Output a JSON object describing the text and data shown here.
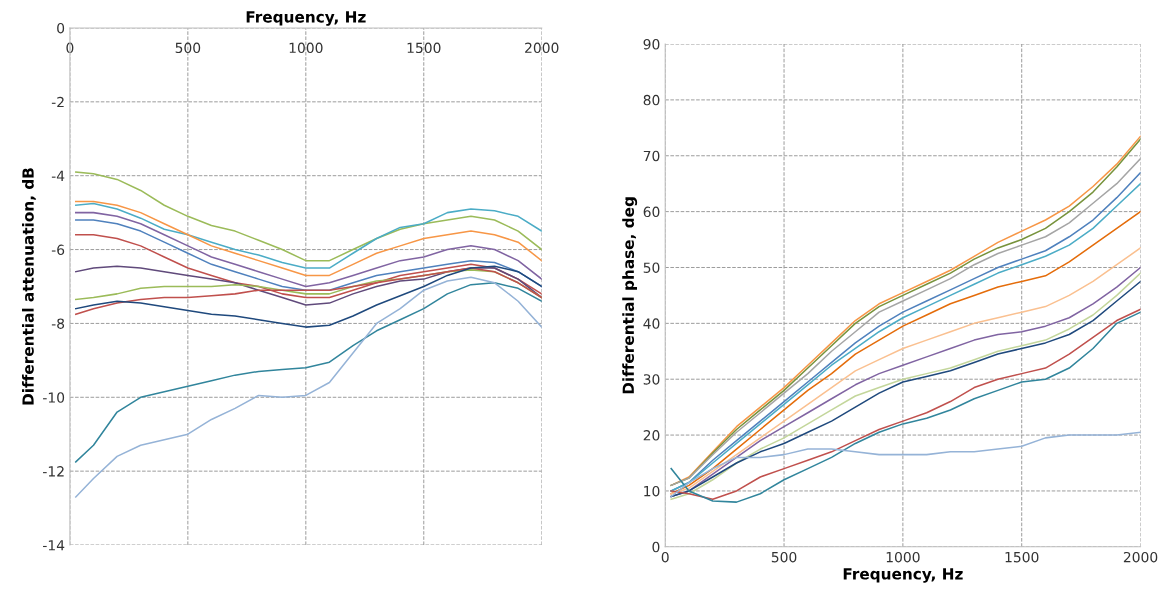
{
  "chart_data": [
    {
      "type": "line",
      "xlabel": "Frequency, Hz",
      "ylabel": "Differential attenuation, dB",
      "xlim": [
        0,
        2000
      ],
      "xticks": [
        0,
        500,
        1000,
        1500,
        2000
      ],
      "ylim": [
        -14,
        0
      ],
      "yticks": [
        -14,
        -12,
        -10,
        -8,
        -6,
        -4,
        -2,
        0
      ],
      "grid": true,
      "line_style": "solid",
      "x": [
        25,
        100,
        200,
        300,
        400,
        500,
        600,
        700,
        800,
        900,
        1000,
        1100,
        1200,
        1300,
        1400,
        1500,
        1600,
        1700,
        1800,
        1900,
        2000
      ],
      "series": [
        {
          "color": "#9bbb59",
          "values": [
            -3.9,
            -3.95,
            -4.1,
            -4.4,
            -4.8,
            -5.1,
            -5.35,
            -5.5,
            -5.75,
            -6.0,
            -6.3,
            -6.3,
            -6.0,
            -5.7,
            -5.45,
            -5.3,
            -5.2,
            -5.1,
            -5.2,
            -5.5,
            -6.0
          ]
        },
        {
          "color": "#4bacc6",
          "values": [
            -4.8,
            -4.75,
            -4.9,
            -5.15,
            -5.45,
            -5.6,
            -5.8,
            -6.0,
            -6.15,
            -6.35,
            -6.5,
            -6.5,
            -6.1,
            -5.7,
            -5.4,
            -5.3,
            -5.0,
            -4.9,
            -4.95,
            -5.1,
            -5.5
          ]
        },
        {
          "color": "#f79646",
          "values": [
            -4.7,
            -4.7,
            -4.8,
            -5.0,
            -5.3,
            -5.6,
            -5.9,
            -6.1,
            -6.3,
            -6.5,
            -6.7,
            -6.7,
            -6.4,
            -6.1,
            -5.9,
            -5.7,
            -5.6,
            -5.5,
            -5.6,
            -5.8,
            -6.3
          ]
        },
        {
          "color": "#8064a2",
          "values": [
            -5.0,
            -5.0,
            -5.1,
            -5.3,
            -5.6,
            -5.9,
            -6.2,
            -6.4,
            -6.6,
            -6.8,
            -7.0,
            -6.9,
            -6.7,
            -6.5,
            -6.3,
            -6.2,
            -6.0,
            -5.9,
            -6.0,
            -6.3,
            -6.8
          ]
        },
        {
          "color": "#4f81bd",
          "values": [
            -5.2,
            -5.2,
            -5.3,
            -5.5,
            -5.8,
            -6.1,
            -6.4,
            -6.6,
            -6.8,
            -7.0,
            -7.1,
            -7.1,
            -6.9,
            -6.7,
            -6.6,
            -6.5,
            -6.4,
            -6.3,
            -6.35,
            -6.6,
            -7.0
          ]
        },
        {
          "color": "#c0504d",
          "values": [
            -5.6,
            -5.6,
            -5.7,
            -5.9,
            -6.2,
            -6.5,
            -6.7,
            -6.9,
            -7.0,
            -7.2,
            -7.3,
            -7.3,
            -7.1,
            -6.9,
            -6.7,
            -6.6,
            -6.5,
            -6.4,
            -6.5,
            -6.8,
            -7.2
          ]
        },
        {
          "color": "#604a7b",
          "values": [
            -6.6,
            -6.5,
            -6.45,
            -6.5,
            -6.6,
            -6.7,
            -6.8,
            -6.9,
            -7.1,
            -7.3,
            -7.5,
            -7.45,
            -7.2,
            -7.0,
            -6.85,
            -6.8,
            -6.6,
            -6.5,
            -6.5,
            -6.8,
            -7.3
          ]
        },
        {
          "color": "#9bbb59",
          "values": [
            -7.35,
            -7.3,
            -7.2,
            -7.05,
            -7.0,
            -7.0,
            -7.0,
            -6.95,
            -7.0,
            -7.1,
            -7.2,
            -7.2,
            -7.0,
            -6.85,
            -6.8,
            -6.7,
            -6.6,
            -6.55,
            -6.6,
            -6.9,
            -7.3
          ]
        },
        {
          "color": "#c0504d",
          "values": [
            -7.75,
            -7.6,
            -7.45,
            -7.35,
            -7.3,
            -7.3,
            -7.25,
            -7.2,
            -7.1,
            -7.1,
            -7.1,
            -7.1,
            -7.0,
            -6.9,
            -6.8,
            -6.7,
            -6.6,
            -6.5,
            -6.6,
            -6.9,
            -7.3
          ]
        },
        {
          "color": "#1f497d",
          "values": [
            -7.6,
            -7.5,
            -7.4,
            -7.45,
            -7.55,
            -7.65,
            -7.75,
            -7.8,
            -7.9,
            -8.0,
            -8.1,
            -8.05,
            -7.8,
            -7.5,
            -7.25,
            -7.0,
            -6.7,
            -6.5,
            -6.45,
            -6.6,
            -7.0
          ]
        },
        {
          "color": "#31859c",
          "values": [
            -11.75,
            -11.3,
            -10.4,
            -10.0,
            -9.85,
            -9.7,
            -9.55,
            -9.4,
            -9.3,
            -9.25,
            -9.2,
            -9.05,
            -8.6,
            -8.2,
            -7.9,
            -7.6,
            -7.2,
            -6.95,
            -6.9,
            -7.05,
            -7.4
          ]
        },
        {
          "color": "#95b3d7",
          "values": [
            -12.7,
            -12.2,
            -11.6,
            -11.3,
            -11.15,
            -11.0,
            -10.6,
            -10.3,
            -9.95,
            -10.0,
            -9.95,
            -9.6,
            -8.8,
            -8.0,
            -7.6,
            -7.1,
            -6.85,
            -6.75,
            -6.9,
            -7.4,
            -8.1
          ]
        }
      ]
    },
    {
      "type": "line",
      "xlabel": "Frequency, Hz",
      "ylabel": "Differential phase, deg",
      "xlim": [
        0,
        2000
      ],
      "xticks": [
        0,
        500,
        1000,
        1500,
        2000
      ],
      "ylim": [
        0,
        90
      ],
      "yticks": [
        0,
        10,
        20,
        30,
        40,
        50,
        60,
        70,
        80,
        90
      ],
      "grid": true,
      "line_style": "solid",
      "x": [
        25,
        100,
        200,
        300,
        400,
        500,
        600,
        700,
        800,
        900,
        1000,
        1100,
        1200,
        1300,
        1400,
        1500,
        1600,
        1700,
        1800,
        1900,
        2000
      ],
      "series": [
        {
          "color": "#f79646",
          "values": [
            11,
            12.5,
            17,
            21.5,
            25,
            28.5,
            32.5,
            36.5,
            40.5,
            43.5,
            45.5,
            47.5,
            49.5,
            52,
            54.5,
            56.5,
            58.5,
            61,
            64.5,
            68.5,
            73.5
          ]
        },
        {
          "color": "#77933c",
          "values": [
            11,
            12.3,
            16.8,
            21,
            24.5,
            28,
            32,
            36,
            40,
            43,
            45,
            47,
            49,
            51.5,
            53.5,
            55,
            57,
            60,
            63.5,
            68,
            73
          ]
        },
        {
          "color": "#a5a5a5",
          "values": [
            11,
            12.3,
            16.5,
            20.5,
            24,
            27.5,
            31,
            35,
            38.5,
            42,
            44,
            46,
            48,
            50.5,
            52.5,
            54,
            55.5,
            58,
            61.5,
            65,
            69.5
          ]
        },
        {
          "color": "#4f81bd",
          "values": [
            10,
            11.5,
            15.5,
            19,
            22.5,
            26,
            29.5,
            33,
            36.5,
            39.5,
            42,
            44,
            46,
            48,
            50,
            51.5,
            53,
            55.5,
            58.5,
            62.5,
            67
          ]
        },
        {
          "color": "#4bacc6",
          "values": [
            10,
            11.5,
            15,
            18.5,
            22,
            25.5,
            29,
            32.5,
            35.5,
            38.5,
            41,
            43,
            45,
            47,
            49,
            50.5,
            52,
            54,
            57,
            61,
            65
          ]
        },
        {
          "color": "#e46c0a",
          "values": [
            9.5,
            11,
            14,
            17.5,
            21,
            24.5,
            28,
            31,
            34.5,
            37,
            39.5,
            41.5,
            43.5,
            45,
            46.5,
            47.5,
            48.5,
            51,
            54,
            57,
            60
          ]
        },
        {
          "color": "#fac090",
          "values": [
            9.5,
            10.5,
            13.5,
            16.5,
            19.5,
            22.5,
            25.5,
            28.5,
            31.5,
            33.5,
            35.5,
            37,
            38.5,
            40,
            41,
            42,
            43,
            45,
            47.5,
            50.5,
            53.5
          ]
        },
        {
          "color": "#8064a2",
          "values": [
            9,
            10,
            13,
            16,
            19,
            21.5,
            24,
            26.5,
            29,
            31,
            32.5,
            34,
            35.5,
            37,
            38,
            38.5,
            39.5,
            41,
            43.5,
            46.5,
            50
          ]
        },
        {
          "color": "#c3d69b",
          "values": [
            8.5,
            9.5,
            12,
            15,
            17.5,
            19.5,
            22,
            24.5,
            27,
            28.5,
            30,
            31,
            32,
            33.5,
            35,
            36,
            37,
            39,
            41.5,
            45,
            49
          ]
        },
        {
          "color": "#1f497d",
          "values": [
            9,
            10,
            12.5,
            15,
            17,
            18.5,
            20.5,
            22.5,
            25,
            27.5,
            29.5,
            30.5,
            31.5,
            33,
            34.5,
            35.5,
            36.5,
            38,
            40.5,
            44,
            47.5
          ]
        },
        {
          "color": "#c0504d",
          "values": [
            10,
            9.5,
            8.5,
            10,
            12.5,
            14,
            15.5,
            17,
            19,
            21,
            22.5,
            24,
            26,
            28.5,
            30,
            31,
            32,
            34.5,
            37.5,
            40.5,
            42.5
          ]
        },
        {
          "color": "#31859c",
          "values": [
            14,
            10,
            8.2,
            8,
            9.5,
            12,
            14,
            16,
            18.5,
            20.5,
            22,
            23,
            24.5,
            26.5,
            28,
            29.5,
            30,
            32,
            35.5,
            40,
            42
          ]
        },
        {
          "color": "#95b3d7",
          "values": [
            9,
            11.5,
            14,
            16,
            16,
            16.5,
            17.5,
            17.5,
            17,
            16.5,
            16.5,
            16.5,
            17,
            17,
            17.5,
            18,
            19.5,
            20,
            20,
            20,
            20.5
          ]
        }
      ]
    }
  ]
}
